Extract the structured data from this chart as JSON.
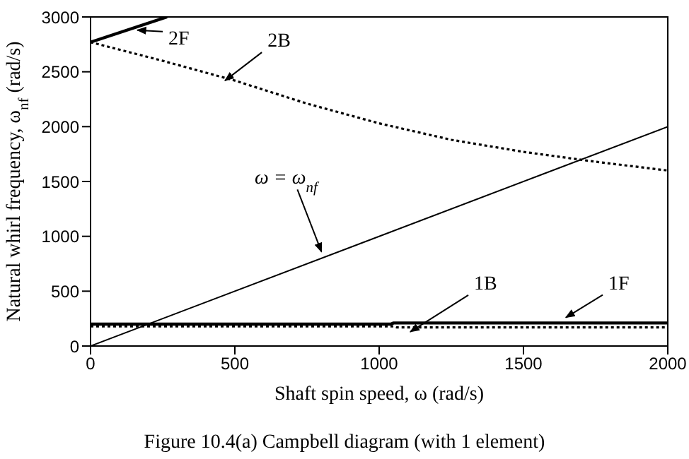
{
  "chart_data": {
    "type": "line",
    "title": "Figure 10.4(a) Campbell diagram (with 1 element)",
    "xlabel": "Shaft spin speed, ω (rad/s)",
    "ylabel": "Natural whirl frequency, ω$_{nf}$ (rad/s)",
    "xlim": [
      0,
      2000
    ],
    "xticks": [
      0,
      500,
      1000,
      1500,
      2000
    ],
    "ylim": [
      0,
      3000
    ],
    "yticks": [
      0,
      500,
      1000,
      1500,
      2000,
      2500,
      3000
    ],
    "grid": false,
    "legend": false,
    "marker": "none",
    "series": [
      {
        "color": "#000000",
        "line_style": "solid",
        "x": [
          0,
          265
        ],
        "values": [
          2770,
          3000
        ]
      },
      {
        "color": "#000000",
        "line_style": "dotted",
        "x": [
          0,
          250,
          500,
          750,
          1000,
          1250,
          1500,
          1750,
          2000
        ],
        "values": [
          2770,
          2600,
          2420,
          2210,
          2030,
          1880,
          1770,
          1680,
          1600
        ]
      },
      {
        "color": "#000000",
        "line_style": "solid",
        "x": [
          0,
          2000
        ],
        "values": [
          0,
          2000
        ]
      },
      {
        "color": "#000000",
        "line_style": "solid",
        "x": [
          0,
          1040,
          1050,
          2000
        ],
        "values": [
          200,
          200,
          210,
          210
        ]
      },
      {
        "color": "#000000",
        "line_style": "dotted",
        "x": [
          0,
          1050,
          1060,
          2000
        ],
        "values": [
          180,
          180,
          170,
          170
        ]
      }
    ],
    "annotations": [
      {
        "text": "2F",
        "x": 162,
        "y": 2880
      },
      {
        "text": "2B",
        "x": 466,
        "y": 2420
      },
      {
        "text": "ω = ω$_{nf}$",
        "x": 800,
        "y": 860
      },
      {
        "text": "1B",
        "x": 1108,
        "y": 130
      },
      {
        "text": "1F",
        "x": 1647,
        "y": 260
      }
    ]
  }
}
